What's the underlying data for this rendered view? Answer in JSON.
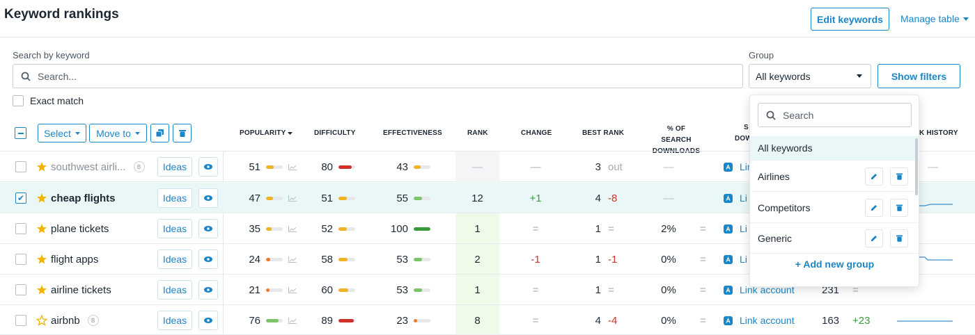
{
  "header": {
    "title": "Keyword rankings",
    "edit_keywords": "Edit keywords",
    "manage_table": "Manage table"
  },
  "search": {
    "label": "Search by keyword",
    "placeholder": "Search...",
    "exact_match": "Exact match"
  },
  "group": {
    "label": "Group",
    "selected": "All keywords",
    "show_filters": "Show filters"
  },
  "toolbar": {
    "select": "Select",
    "move_to": "Move to"
  },
  "columns": {
    "popularity": "POPULARITY",
    "difficulty": "DIFFICULTY",
    "effectiveness": "EFFECTIVENESS",
    "rank": "RANK",
    "change": "CHANGE",
    "best_rank": "BEST RANK",
    "pct_line1": "% OF SEARCH",
    "pct_line2": "DOWNLOADS",
    "s_partial": "S",
    "dow_partial": "DOW",
    "history_partial": "K HISTORY"
  },
  "dropdown": {
    "search_placeholder": "Search",
    "items": [
      "All keywords",
      "Airlines",
      "Competitors",
      "Generic"
    ],
    "add_group": "+ Add new group"
  },
  "rows": [
    {
      "keyword": "southwest airli...",
      "badge": "B",
      "ideas": "Ideas",
      "popularity": "51",
      "pop_level": 0.45,
      "difficulty": "80",
      "diff_level": 0.8,
      "effectiveness": "43",
      "eff_level": 0.4,
      "rank": "—",
      "change": "—",
      "best_rank": "3",
      "best_change": "out",
      "pct": "—",
      "pct_change": "",
      "link": "Lin",
      "count": "",
      "count_change": "",
      "history_partial": "—"
    },
    {
      "keyword": "cheap flights",
      "badge": "",
      "ideas": "Ideas",
      "popularity": "47",
      "pop_level": 0.42,
      "difficulty": "51",
      "diff_level": 0.5,
      "effectiveness": "55",
      "eff_level": 0.5,
      "rank": "12",
      "change": "+1",
      "best_rank": "4",
      "best_change": "-8",
      "pct": "—",
      "pct_change": "",
      "link": "Li",
      "count": "",
      "count_change": "",
      "history_partial": ""
    },
    {
      "keyword": "plane tickets",
      "badge": "",
      "ideas": "Ideas",
      "popularity": "35",
      "pop_level": 0.35,
      "difficulty": "52",
      "diff_level": 0.5,
      "effectiveness": "100",
      "eff_level": 1.0,
      "rank": "1",
      "change": "=",
      "best_rank": "1",
      "best_change": "=",
      "pct": "2%",
      "pct_change": "=",
      "link": "Li",
      "count": "",
      "count_change": "",
      "history_partial": ""
    },
    {
      "keyword": "flight apps",
      "badge": "",
      "ideas": "Ideas",
      "popularity": "24",
      "pop_level": 0.24,
      "difficulty": "58",
      "diff_level": 0.55,
      "effectiveness": "53",
      "eff_level": 0.5,
      "rank": "2",
      "change": "-1",
      "best_rank": "1",
      "best_change": "-1",
      "pct": "0%",
      "pct_change": "=",
      "link": "Li",
      "count": "",
      "count_change": "",
      "history_partial": ""
    },
    {
      "keyword": "airline tickets",
      "badge": "",
      "ideas": "Ideas",
      "popularity": "21",
      "pop_level": 0.21,
      "difficulty": "60",
      "diff_level": 0.58,
      "effectiveness": "53",
      "eff_level": 0.5,
      "rank": "1",
      "change": "=",
      "best_rank": "1",
      "best_change": "=",
      "pct": "0%",
      "pct_change": "=",
      "link": "Link account",
      "count": "231",
      "count_change": "=",
      "history_partial": ""
    },
    {
      "keyword": "airbnb",
      "badge": "B",
      "ideas": "Ideas",
      "popularity": "76",
      "pop_level": 0.76,
      "difficulty": "89",
      "diff_level": 0.9,
      "effectiveness": "23",
      "eff_level": 0.22,
      "rank": "8",
      "change": "=",
      "best_rank": "4",
      "best_change": "-4",
      "pct": "0%",
      "pct_change": "=",
      "link": "Link account",
      "count": "163",
      "count_change": "+23",
      "history_partial": ""
    }
  ],
  "colors": {
    "accent": "#1a86c8",
    "green": "#3a9a3a",
    "red": "#d0312d",
    "yellow": "#f0b323",
    "star": "#f5b301"
  }
}
